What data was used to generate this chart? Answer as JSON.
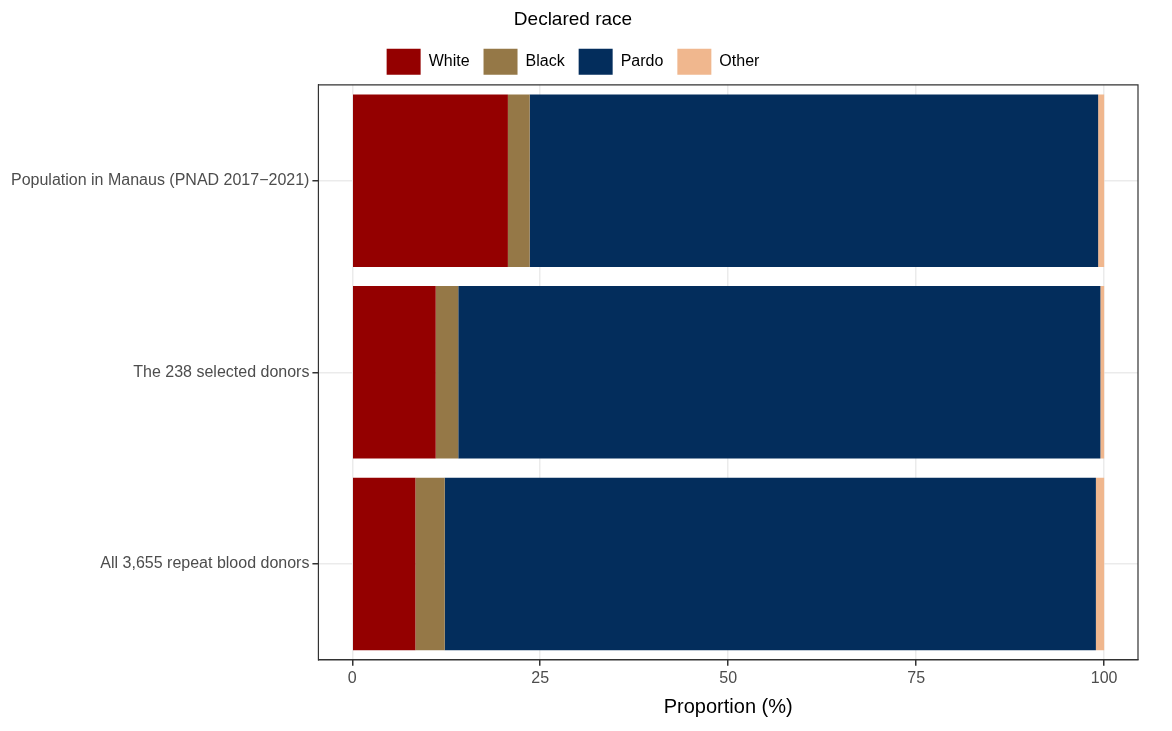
{
  "chart_data": {
    "type": "bar",
    "orientation": "horizontal",
    "stacked": true,
    "xlabel": "Proportion (%)",
    "legend_title": "Declared race",
    "legend": "top",
    "categories": [
      "Population in Manaus (PNAD 2017−2021)",
      "The 238 selected donors",
      "All 3,655 repeat blood donors"
    ],
    "series": [
      {
        "name": "White",
        "color": "#940000",
        "values": [
          20.7,
          11.1,
          8.4
        ]
      },
      {
        "name": "Black",
        "color": "#957847",
        "values": [
          2.9,
          3.0,
          3.9
        ]
      },
      {
        "name": "Pardo",
        "color": "#032d5c",
        "values": [
          75.6,
          85.4,
          86.6
        ]
      },
      {
        "name": "Other",
        "color": "#f0b78e",
        "values": [
          0.8,
          0.5,
          1.1
        ]
      }
    ],
    "xlim": [
      -4.5,
      104.5
    ],
    "xticks": [
      0,
      25,
      50,
      75,
      100
    ],
    "grid": true
  }
}
